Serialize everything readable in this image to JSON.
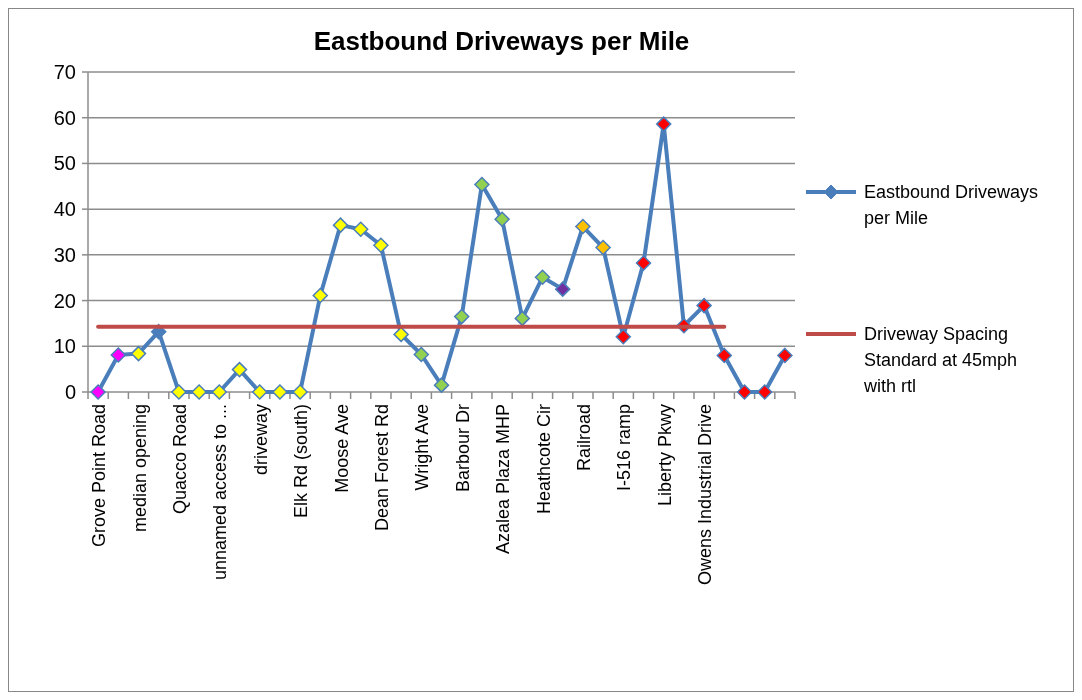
{
  "chart_data": {
    "type": "line",
    "title": "Eastbound Driveways per Mile",
    "categories": [
      "Grove Point Road",
      null,
      "median opening",
      null,
      "Quacco Road",
      null,
      "unnamed access to ...",
      null,
      "driveway",
      null,
      "Elk Rd (south)",
      null,
      "Moose Ave",
      null,
      "Dean Forest Rd",
      null,
      "Wright Ave",
      null,
      "Barbour Dr",
      null,
      "Azalea Plaza MHP",
      null,
      "Heathcote Cir",
      null,
      "Railroad",
      null,
      "I-516 ramp",
      null,
      "Liberty Pkwy",
      null,
      "Owens Industrial Drive",
      null,
      null,
      null,
      null
    ],
    "series": [
      {
        "name": "Eastbound Driveways per Mile",
        "color": "#4a7ebb",
        "marker": "diamond",
        "values": [
          0,
          8.1,
          8.4,
          13.2,
          0,
          0,
          0,
          4.9,
          0,
          0,
          0,
          21.1,
          36.5,
          35.6,
          32.1,
          12.6,
          8.2,
          1.5,
          16.5,
          45.4,
          37.8,
          16.1,
          25.1,
          22.5,
          36.2,
          31.6,
          12.1,
          28.2,
          58.6,
          14.5,
          18.9,
          8.0,
          0,
          0,
          8.0
        ],
        "colors": [
          "#ff00ff",
          "#ff00ff",
          "#ffff00",
          "#4a7ebb",
          "#ffff00",
          "#ffff00",
          "#ffff00",
          "#ffff00",
          "#ffff00",
          "#ffff00",
          "#ffff00",
          "#ffff00",
          "#ffff00",
          "#ffff00",
          "#ffff00",
          "#ffff00",
          "#92d050",
          "#92d050",
          "#92d050",
          "#92d050",
          "#92d050",
          "#92d050",
          "#92d050",
          "#7030a0",
          "#ffc000",
          "#ffc000",
          "#ff0000",
          "#ff0000",
          "#ff0000",
          "#ff0000",
          "#ff0000",
          "#ff0000",
          "#ff0000",
          "#ff0000",
          "#ff0000"
        ]
      },
      {
        "name": "Driveway Spacing Standard at 45mph with rtl",
        "color": "#be4b48",
        "marker": "none",
        "values": [
          14.3,
          14.3,
          14.3,
          14.3,
          14.3,
          14.3,
          14.3,
          14.3,
          14.3,
          14.3,
          14.3,
          14.3,
          14.3,
          14.3,
          14.3,
          14.3,
          14.3,
          14.3,
          14.3,
          14.3,
          14.3,
          14.3,
          14.3,
          14.3,
          14.3,
          14.3,
          14.3,
          14.3,
          14.3,
          14.3,
          14.3,
          14.3,
          null,
          null,
          null
        ]
      }
    ],
    "ylim": [
      0,
      70
    ],
    "yticks": [
      0,
      10,
      20,
      30,
      40,
      50,
      60,
      70
    ],
    "grid": "y",
    "legend": "right"
  }
}
